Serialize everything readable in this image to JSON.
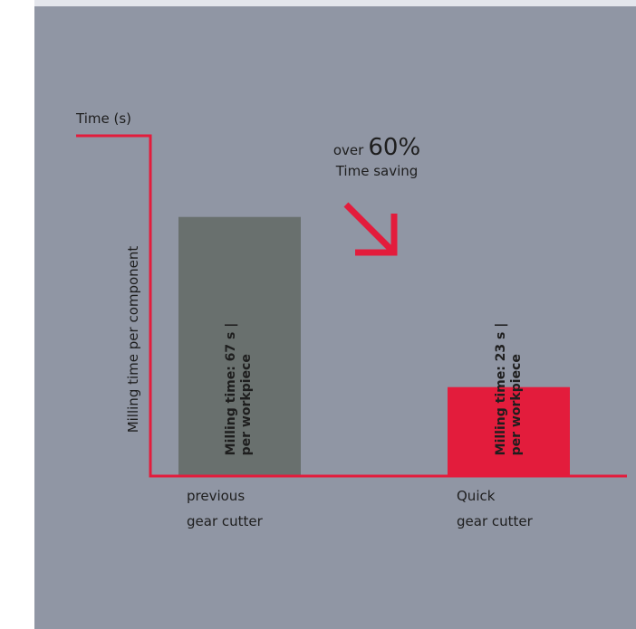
{
  "chart_data": {
    "type": "bar",
    "categories": [
      "previous\ngear cutter",
      "Quick\ngear cutter"
    ],
    "values": [
      67,
      23
    ],
    "data_labels": [
      [
        "Milling time: 67 s |",
        "per workpiece"
      ],
      [
        "Milling time: 23 s |",
        "per workpiece"
      ]
    ],
    "bar_colors": [
      "#69706e",
      "#e31c3c"
    ],
    "axis_color": "#e31c3c",
    "ytitle": "Time (s)",
    "ylabel": "Milling time per component",
    "ylim": [
      0,
      88
    ],
    "grid": false,
    "annotation": {
      "prefix": "over",
      "value": "60%",
      "text": "Time saving"
    }
  },
  "colors": {
    "background": "#9096a4",
    "accent": "#e31c3c",
    "text": "#1e1e1e"
  }
}
